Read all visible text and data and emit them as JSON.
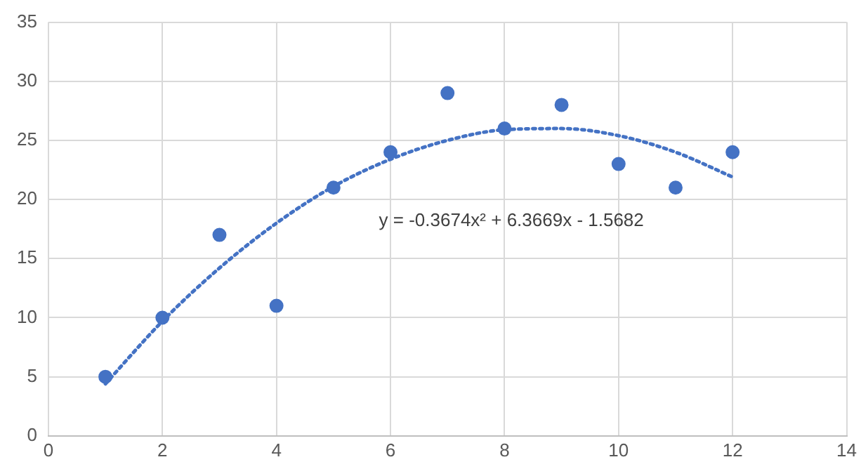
{
  "chart_data": {
    "type": "scatter",
    "x": [
      1,
      2,
      3,
      4,
      5,
      6,
      7,
      8,
      9,
      10,
      11,
      12
    ],
    "series": [
      {
        "type": "scatter",
        "color": "#4472c4",
        "marker": "circle",
        "values": [
          5,
          10,
          17,
          11,
          21,
          24,
          29,
          26,
          28,
          23,
          21,
          24
        ]
      },
      {
        "type": "line",
        "color": "#4472c4",
        "marker": "none",
        "line_style": "dotted",
        "x": [
          1,
          2,
          3,
          4,
          5,
          6,
          7,
          8,
          9,
          10,
          11,
          12
        ],
        "values": [
          4.4,
          9.7,
          14.2,
          18.0,
          21.1,
          23.4,
          25.0,
          25.9,
          26.0,
          25.4,
          24.0,
          21.9
        ]
      }
    ],
    "xlim": [
      0,
      14
    ],
    "xticks": [
      0,
      2,
      4,
      6,
      8,
      10,
      12,
      14
    ],
    "ylim": [
      0,
      35
    ],
    "yticks": [
      0,
      5,
      10,
      15,
      20,
      25,
      30,
      35
    ],
    "grid": true,
    "legend": false,
    "annotations": [
      "y = -0.3674x² + 6.3669x - 1.5682"
    ]
  }
}
